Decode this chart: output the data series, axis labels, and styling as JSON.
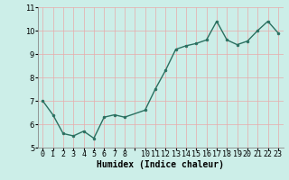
{
  "x": [
    0,
    1,
    2,
    3,
    4,
    5,
    6,
    7,
    8,
    10,
    11,
    12,
    13,
    14,
    15,
    16,
    17,
    18,
    19,
    20,
    21,
    22,
    23
  ],
  "y": [
    7.0,
    6.4,
    5.6,
    5.5,
    5.7,
    5.4,
    6.3,
    6.4,
    6.3,
    6.6,
    7.5,
    8.3,
    9.2,
    9.35,
    9.45,
    9.6,
    10.4,
    9.6,
    9.4,
    9.55,
    10.0,
    10.4,
    9.9
  ],
  "line_color": "#2a7060",
  "marker": "o",
  "marker_size": 2.0,
  "linewidth": 1.0,
  "bg_color": "#cceee8",
  "grid_color": "#e8aaaa",
  "xlabel": "Humidex (Indice chaleur)",
  "ylim": [
    5,
    11
  ],
  "xlim": [
    -0.5,
    23.5
  ],
  "yticks": [
    5,
    6,
    7,
    8,
    9,
    10,
    11
  ],
  "xtick_labels": [
    "0",
    "1",
    "2",
    "3",
    "4",
    "5",
    "6",
    "7",
    "8",
    "",
    "10",
    "11",
    "12",
    "13",
    "14",
    "15",
    "16",
    "17",
    "18",
    "19",
    "20",
    "21",
    "22",
    "23"
  ],
  "label_fontsize": 7,
  "tick_fontsize": 6
}
